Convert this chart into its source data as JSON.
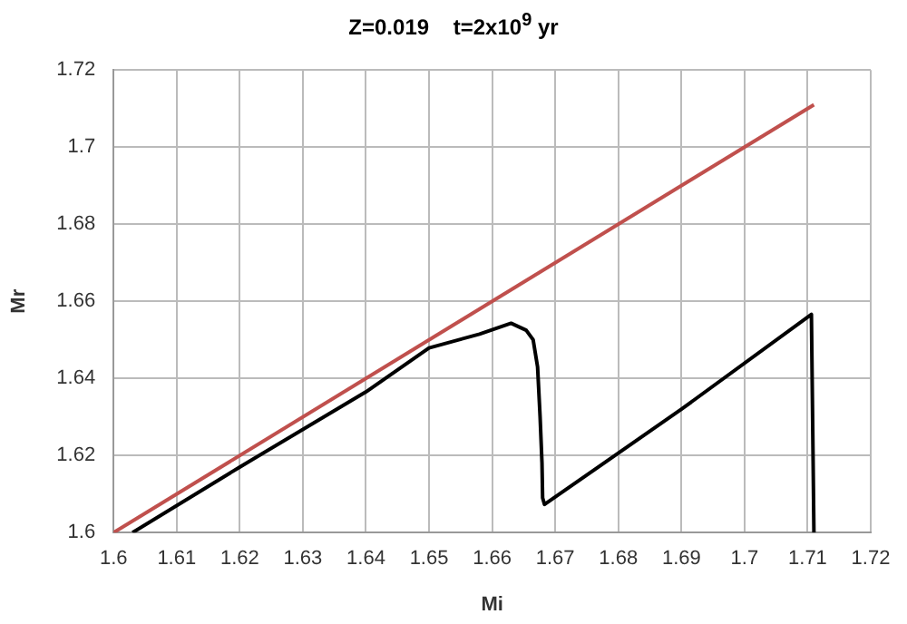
{
  "chart_data": {
    "type": "line",
    "title": "Z=0.019    t=2x10$^{9}$ yr",
    "xlabel": "Mi",
    "ylabel": "Mr",
    "series": [
      {
        "color": "#c0504d",
        "x": [
          1.6,
          1.711
        ],
        "values": [
          1.6,
          1.711
        ]
      },
      {
        "color": "#000000",
        "x": [
          1.603,
          1.62,
          1.64,
          1.65,
          1.658,
          1.663,
          1.6654,
          1.6665,
          1.6672,
          1.6676,
          1.6679,
          1.668,
          1.6683,
          1.69,
          1.7106,
          1.711
        ],
        "values": [
          1.6,
          1.617,
          1.6365,
          1.6479,
          1.6515,
          1.6543,
          1.6525,
          1.65,
          1.643,
          1.63,
          1.618,
          1.609,
          1.6073,
          1.632,
          1.6566,
          1.6
        ]
      }
    ],
    "xlim": [
      1.6,
      1.72
    ],
    "xticks": [
      1.6,
      1.61,
      1.62,
      1.63,
      1.64,
      1.65,
      1.66,
      1.67,
      1.68,
      1.69,
      1.7,
      1.71,
      1.72
    ],
    "ylim": [
      1.6,
      1.72
    ],
    "yticks": [
      1.6,
      1.62,
      1.64,
      1.66,
      1.68,
      1.7,
      1.72
    ],
    "grid": true,
    "marker": "none",
    "line_style": "solid"
  }
}
